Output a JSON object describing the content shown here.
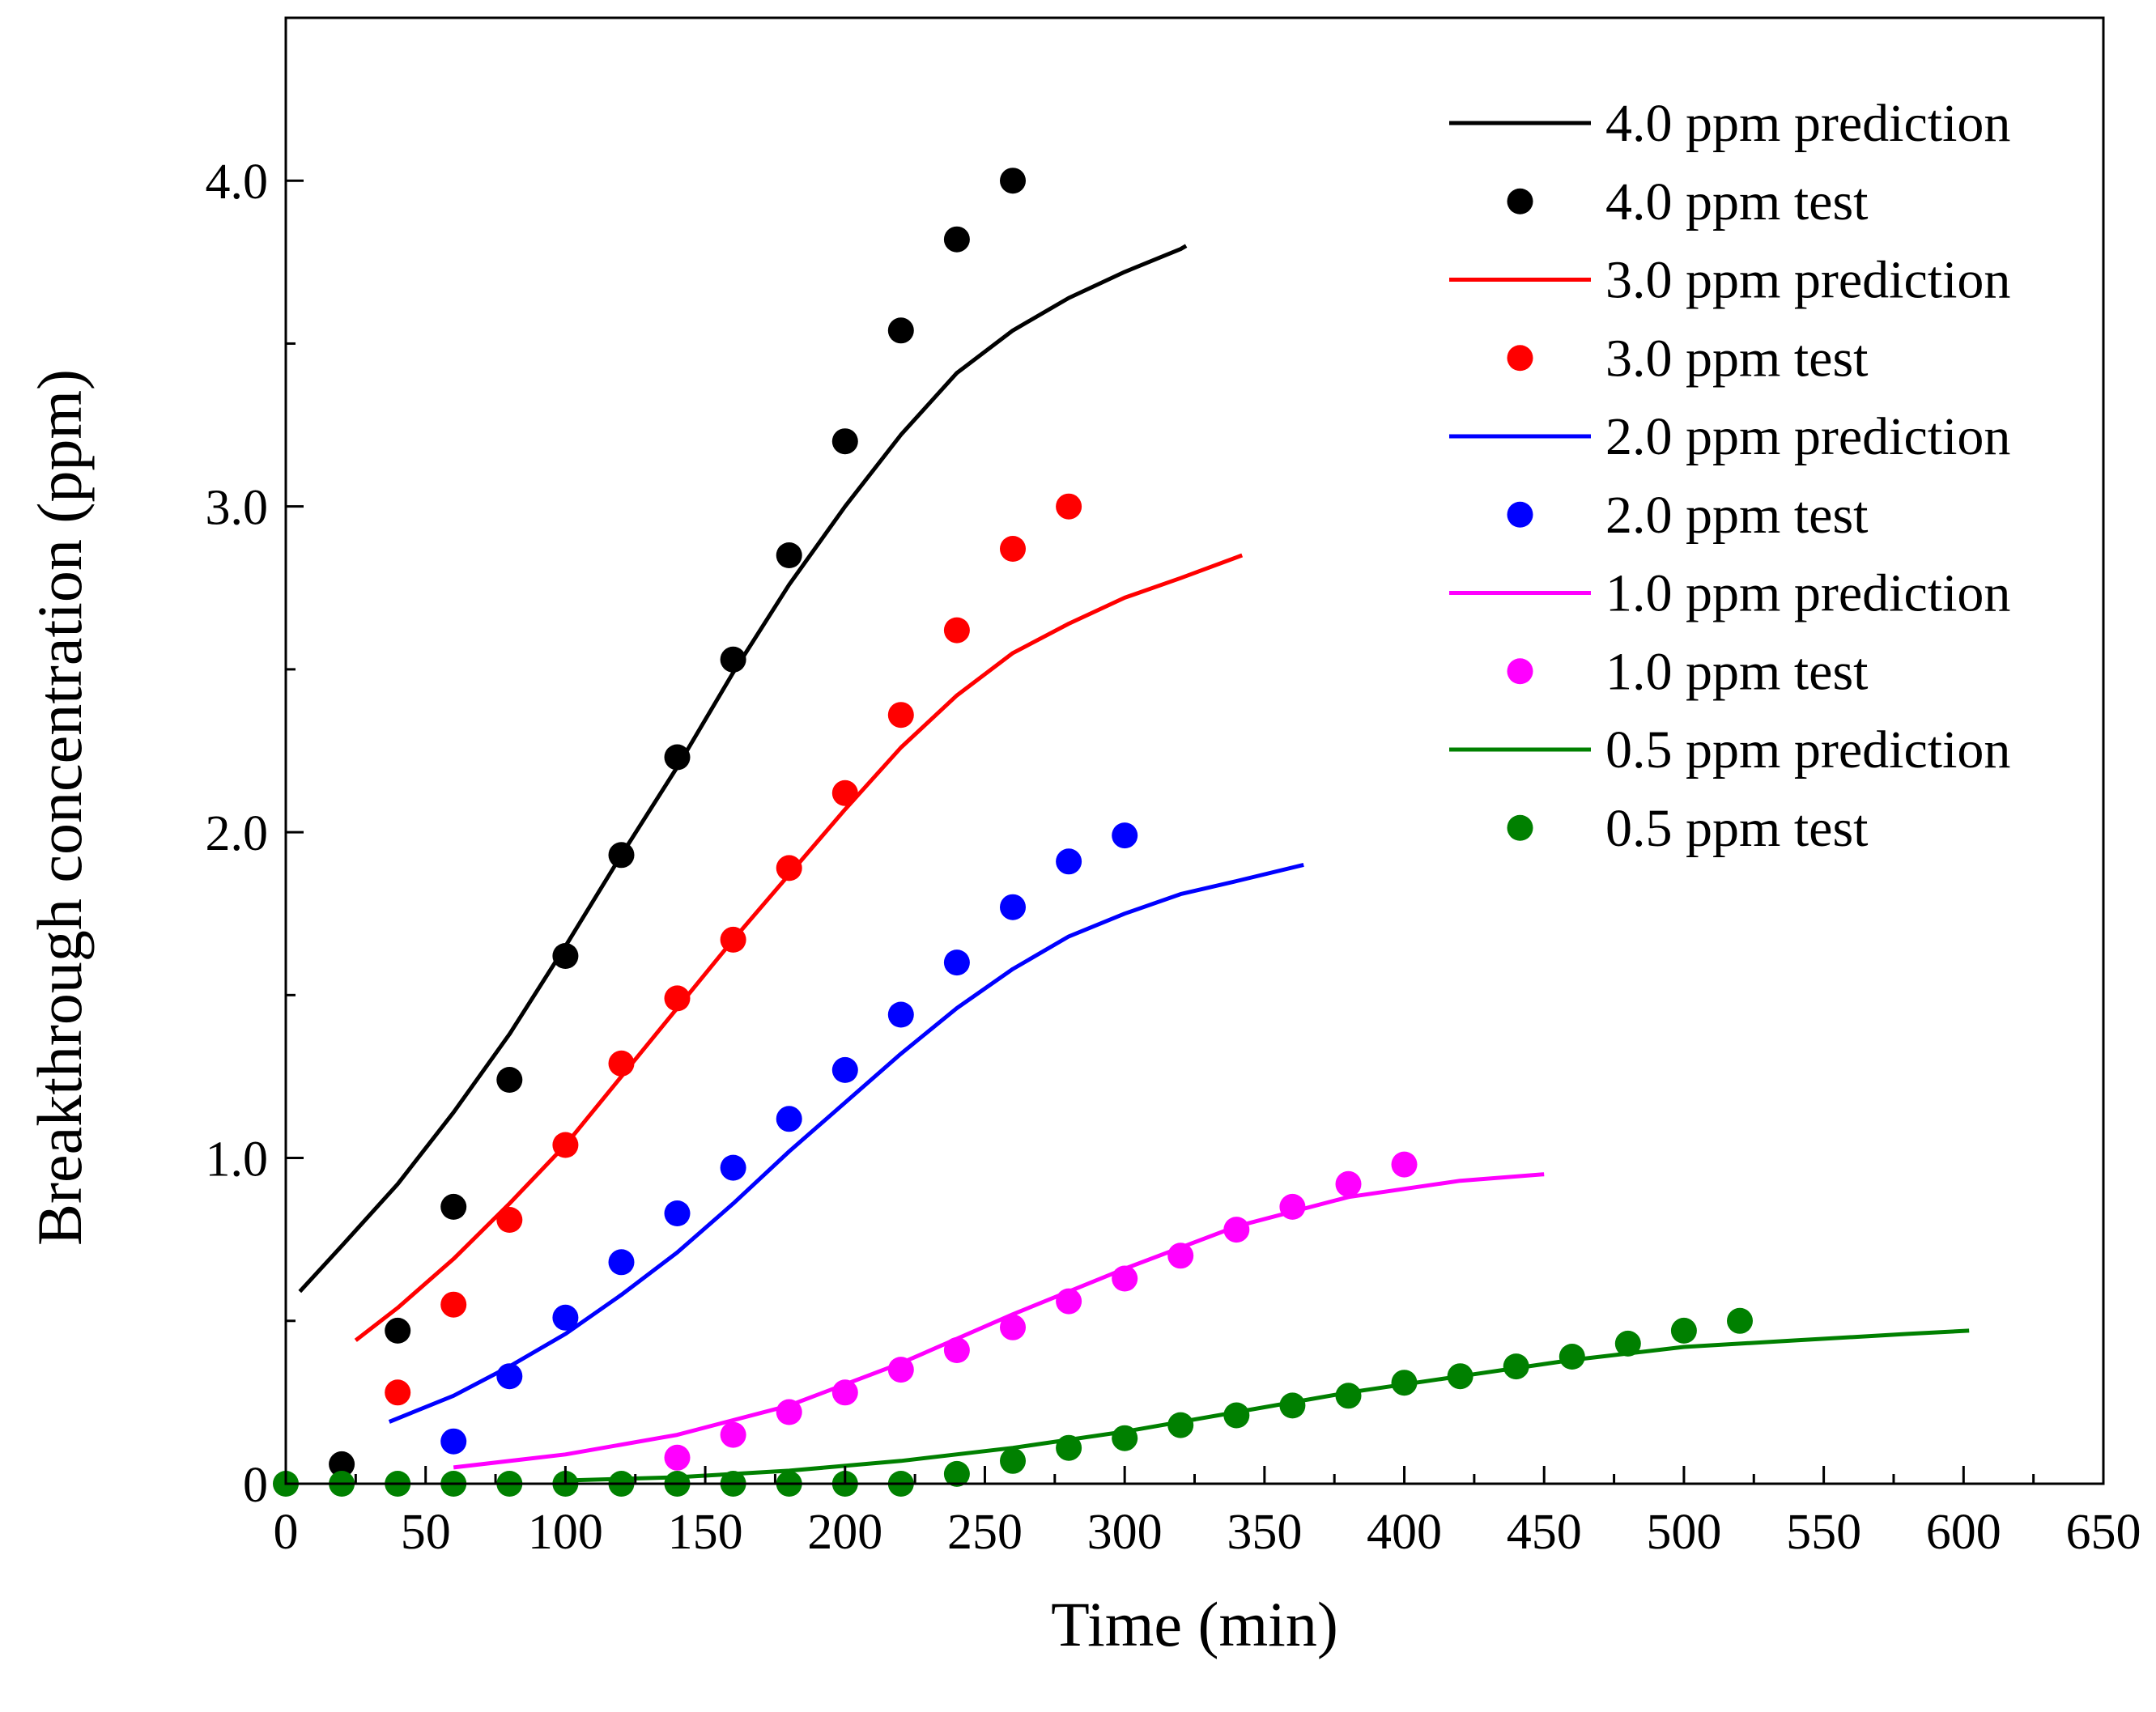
{
  "chart_data": {
    "type": "line",
    "title": "",
    "xlabel": "Time (min)",
    "ylabel": "Breakthrough concentration (ppm)",
    "xlim": [
      0,
      650
    ],
    "ylim": [
      0,
      4.5
    ],
    "grid": false,
    "legend_position": "top-right",
    "x_ticks": [
      {
        "value": 0,
        "label": "0"
      },
      {
        "value": 50,
        "label": "50"
      },
      {
        "value": 100,
        "label": "100"
      },
      {
        "value": 150,
        "label": "150"
      },
      {
        "value": 200,
        "label": "200"
      },
      {
        "value": 250,
        "label": "250"
      },
      {
        "value": 300,
        "label": "300"
      },
      {
        "value": 350,
        "label": "350"
      },
      {
        "value": 400,
        "label": "400"
      },
      {
        "value": 450,
        "label": "450"
      },
      {
        "value": 500,
        "label": "500"
      },
      {
        "value": 550,
        "label": "550"
      },
      {
        "value": 600,
        "label": "600"
      },
      {
        "value": 650,
        "label": "650"
      }
    ],
    "y_ticks": [
      {
        "value": 0,
        "label": "0"
      },
      {
        "value": 1,
        "label": "1.0"
      },
      {
        "value": 2,
        "label": "2.0"
      },
      {
        "value": 3,
        "label": "3.0"
      },
      {
        "value": 4,
        "label": "4.0"
      }
    ],
    "series": [
      {
        "name": "4.0 ppm prediction",
        "kind": "line",
        "color": "#000000",
        "x": [
          5,
          20,
          40,
          60,
          80,
          100,
          120,
          140,
          160,
          180,
          200,
          220,
          240,
          260,
          280,
          300,
          320,
          322
        ],
        "y": [
          0.59,
          0.73,
          0.92,
          1.14,
          1.38,
          1.65,
          1.93,
          2.2,
          2.49,
          2.76,
          3.0,
          3.22,
          3.41,
          3.54,
          3.64,
          3.72,
          3.79,
          3.8
        ]
      },
      {
        "name": "4.0 ppm test",
        "kind": "scatter",
        "color": "#000000",
        "x": [
          20,
          40,
          60,
          80,
          100,
          120,
          140,
          160,
          180,
          200,
          220,
          240,
          260
        ],
        "y": [
          0.06,
          0.47,
          0.85,
          1.24,
          1.62,
          1.93,
          2.23,
          2.53,
          2.85,
          3.2,
          3.54,
          3.82,
          4.0
        ]
      },
      {
        "name": "3.0 ppm prediction",
        "kind": "line",
        "color": "#ff0000",
        "x": [
          25,
          40,
          60,
          80,
          100,
          120,
          140,
          160,
          180,
          200,
          220,
          240,
          260,
          280,
          300,
          320,
          342
        ],
        "y": [
          0.44,
          0.54,
          0.69,
          0.86,
          1.04,
          1.25,
          1.46,
          1.67,
          1.87,
          2.07,
          2.26,
          2.42,
          2.55,
          2.64,
          2.72,
          2.78,
          2.85
        ]
      },
      {
        "name": "3.0 ppm test",
        "kind": "scatter",
        "color": "#ff0000",
        "x": [
          40,
          60,
          80,
          100,
          120,
          140,
          160,
          180,
          200,
          220,
          240,
          260,
          280
        ],
        "y": [
          0.28,
          0.55,
          0.81,
          1.04,
          1.29,
          1.49,
          1.67,
          1.89,
          2.12,
          2.36,
          2.62,
          2.87,
          3.0
        ]
      },
      {
        "name": "2.0 ppm prediction",
        "kind": "line",
        "color": "#0000ff",
        "x": [
          37,
          60,
          80,
          100,
          120,
          140,
          160,
          180,
          200,
          220,
          240,
          260,
          280,
          300,
          320,
          340,
          364
        ],
        "y": [
          0.19,
          0.27,
          0.36,
          0.46,
          0.58,
          0.71,
          0.86,
          1.02,
          1.17,
          1.32,
          1.46,
          1.58,
          1.68,
          1.75,
          1.81,
          1.85,
          1.9
        ]
      },
      {
        "name": "2.0 ppm test",
        "kind": "scatter",
        "color": "#0000ff",
        "x": [
          60,
          80,
          100,
          120,
          140,
          160,
          180,
          200,
          220,
          240,
          260,
          280,
          300
        ],
        "y": [
          0.13,
          0.33,
          0.51,
          0.68,
          0.83,
          0.97,
          1.12,
          1.27,
          1.44,
          1.6,
          1.77,
          1.91,
          1.99
        ]
      },
      {
        "name": "1.0 ppm prediction",
        "kind": "line",
        "color": "#ff00ff",
        "x": [
          60,
          100,
          140,
          180,
          220,
          260,
          300,
          340,
          380,
          420,
          450
        ],
        "y": [
          0.05,
          0.09,
          0.15,
          0.24,
          0.37,
          0.52,
          0.66,
          0.79,
          0.88,
          0.93,
          0.95
        ]
      },
      {
        "name": "1.0 ppm test",
        "kind": "scatter",
        "color": "#ff00ff",
        "x": [
          140,
          160,
          180,
          200,
          220,
          240,
          260,
          280,
          300,
          320,
          340,
          360,
          380,
          400
        ],
        "y": [
          0.08,
          0.15,
          0.22,
          0.28,
          0.35,
          0.41,
          0.48,
          0.56,
          0.63,
          0.7,
          0.78,
          0.85,
          0.92,
          0.98
        ]
      },
      {
        "name": "0.5 ppm prediction",
        "kind": "line",
        "color": "#008000",
        "x": [
          100,
          140,
          180,
          220,
          260,
          300,
          340,
          380,
          420,
          460,
          500,
          540,
          580,
          602
        ],
        "y": [
          0.01,
          0.02,
          0.04,
          0.07,
          0.11,
          0.16,
          0.22,
          0.28,
          0.33,
          0.38,
          0.42,
          0.44,
          0.46,
          0.47
        ]
      },
      {
        "name": "0.5 ppm test",
        "kind": "scatter",
        "color": "#008000",
        "x": [
          0,
          20,
          40,
          60,
          80,
          100,
          120,
          140,
          160,
          180,
          200,
          220,
          240,
          260,
          280,
          300,
          320,
          340,
          360,
          380,
          400,
          420,
          440,
          460,
          480,
          500,
          520
        ],
        "y": [
          0.0,
          0.0,
          0.0,
          0.0,
          0.0,
          0.0,
          0.0,
          0.0,
          0.0,
          0.0,
          0.0,
          0.0,
          0.03,
          0.07,
          0.11,
          0.14,
          0.18,
          0.21,
          0.24,
          0.27,
          0.31,
          0.33,
          0.36,
          0.39,
          0.43,
          0.47,
          0.5
        ]
      }
    ]
  }
}
